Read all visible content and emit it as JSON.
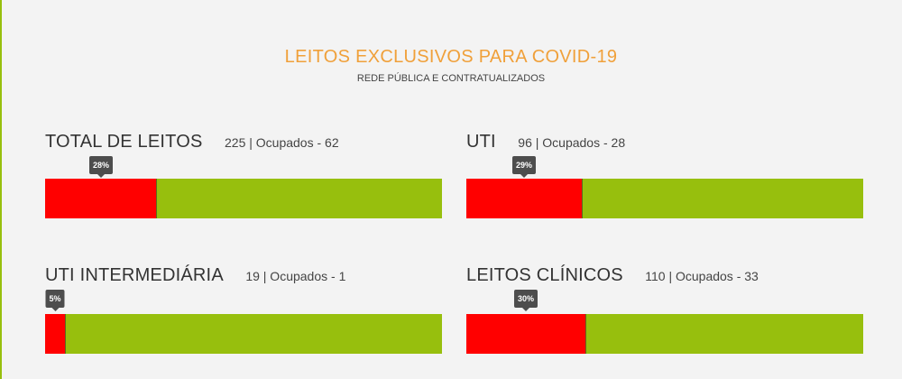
{
  "header": {
    "title": "LEITOS EXCLUSIVOS PARA COVID-19",
    "subtitle": "REDE PÚBLICA E CONTRATUALIZADOS"
  },
  "colors": {
    "title": "#f0a03a",
    "occupied": "#ff0000",
    "available": "#97bf0d",
    "tooltip": "#4d4d4d"
  },
  "cards": [
    {
      "name": "TOTAL DE LEITOS",
      "stat": "225 | Ocupados - 62",
      "percent_label": "28%",
      "occupied_fraction": 0.28
    },
    {
      "name": "UTI",
      "stat": "96 | Ocupados - 28",
      "percent_label": "29%",
      "occupied_fraction": 0.29
    },
    {
      "name": "UTI INTERMEDIÁRIA",
      "stat": "19 | Ocupados - 1",
      "percent_label": "5%",
      "occupied_fraction": 0.05
    },
    {
      "name": "LEITOS CLÍNICOS",
      "stat": "110 | Ocupados - 33",
      "percent_label": "30%",
      "occupied_fraction": 0.3
    }
  ]
}
